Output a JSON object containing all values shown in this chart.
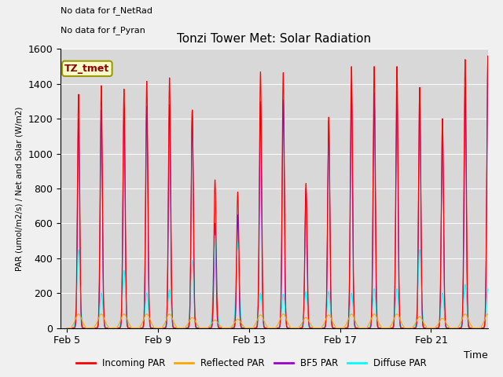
{
  "title": "Tonzi Tower Met: Solar Radiation",
  "ylabel": "PAR (umol/m2/s) / Net and Solar (W/m2)",
  "xlabel": "Time",
  "ylim": [
    0,
    1600
  ],
  "fig_facecolor": "#f0f0f0",
  "ax_facecolor": "#d8d8d8",
  "no_data_text": [
    "No data for f_NetRad",
    "No data for f_Pyran"
  ],
  "legend_label": "TZ_tmet",
  "xtick_labels": [
    "Feb 5",
    "Feb 9",
    "Feb 13",
    "Feb 17",
    "Feb 21"
  ],
  "xtick_positions": [
    0,
    4,
    8,
    12,
    16
  ],
  "xlim_days": 18.5,
  "series": [
    {
      "name": "Incoming PAR",
      "color": "#ff0000"
    },
    {
      "name": "Reflected PAR",
      "color": "#ffa500"
    },
    {
      "name": "BF5 PAR",
      "color": "#9900cc"
    },
    {
      "name": "Diffuse PAR",
      "color": "#00ffff"
    }
  ],
  "total_days": 19,
  "incoming_peaks": [
    1340,
    1390,
    1370,
    1415,
    1435,
    1250,
    850,
    780,
    1470,
    1465,
    830,
    1210,
    1500,
    1500,
    1500,
    1380,
    1200,
    1540,
    1560
  ],
  "reflected_peaks": [
    80,
    80,
    80,
    80,
    80,
    60,
    45,
    50,
    75,
    80,
    60,
    75,
    80,
    80,
    80,
    65,
    55,
    80,
    80
  ],
  "bf5_peaks": [
    1200,
    1250,
    1260,
    1270,
    1280,
    1250,
    600,
    650,
    1300,
    1310,
    800,
    1190,
    1380,
    1350,
    1360,
    1360,
    1200,
    1380,
    1560
  ],
  "diffuse_peaks": [
    450,
    200,
    330,
    200,
    220,
    390,
    530,
    490,
    200,
    195,
    210,
    210,
    200,
    225,
    225,
    450,
    200,
    250,
    225
  ]
}
